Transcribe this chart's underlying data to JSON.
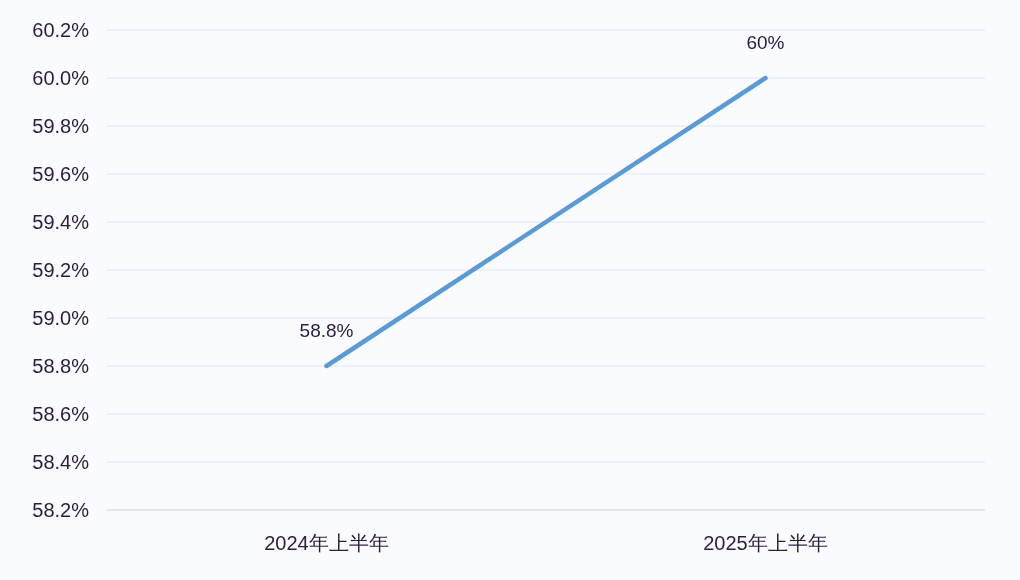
{
  "chart_data": {
    "type": "line",
    "categories": [
      "2024年上半年",
      "2025年上半年"
    ],
    "series": [
      {
        "color": "#5b9bd5",
        "values": [
          58.8,
          60
        ],
        "value_labels": [
          "58.8%",
          "60%"
        ]
      }
    ],
    "ylim": [
      58.2,
      60.2
    ],
    "yticks": [
      {
        "value": 58.2,
        "label": "58.2%"
      },
      {
        "value": 58.4,
        "label": "58.4%"
      },
      {
        "value": 58.6,
        "label": "58.6%"
      },
      {
        "value": 58.8,
        "label": "58.8%"
      },
      {
        "value": 59.0,
        "label": "59.0%"
      },
      {
        "value": 59.2,
        "label": "59.2%"
      },
      {
        "value": 59.4,
        "label": "59.4%"
      },
      {
        "value": 59.6,
        "label": "59.6%"
      },
      {
        "value": 59.8,
        "label": "59.8%"
      },
      {
        "value": 60.0,
        "label": "60.0%"
      },
      {
        "value": 60.2,
        "label": "60.2%"
      }
    ],
    "grid": "y"
  }
}
